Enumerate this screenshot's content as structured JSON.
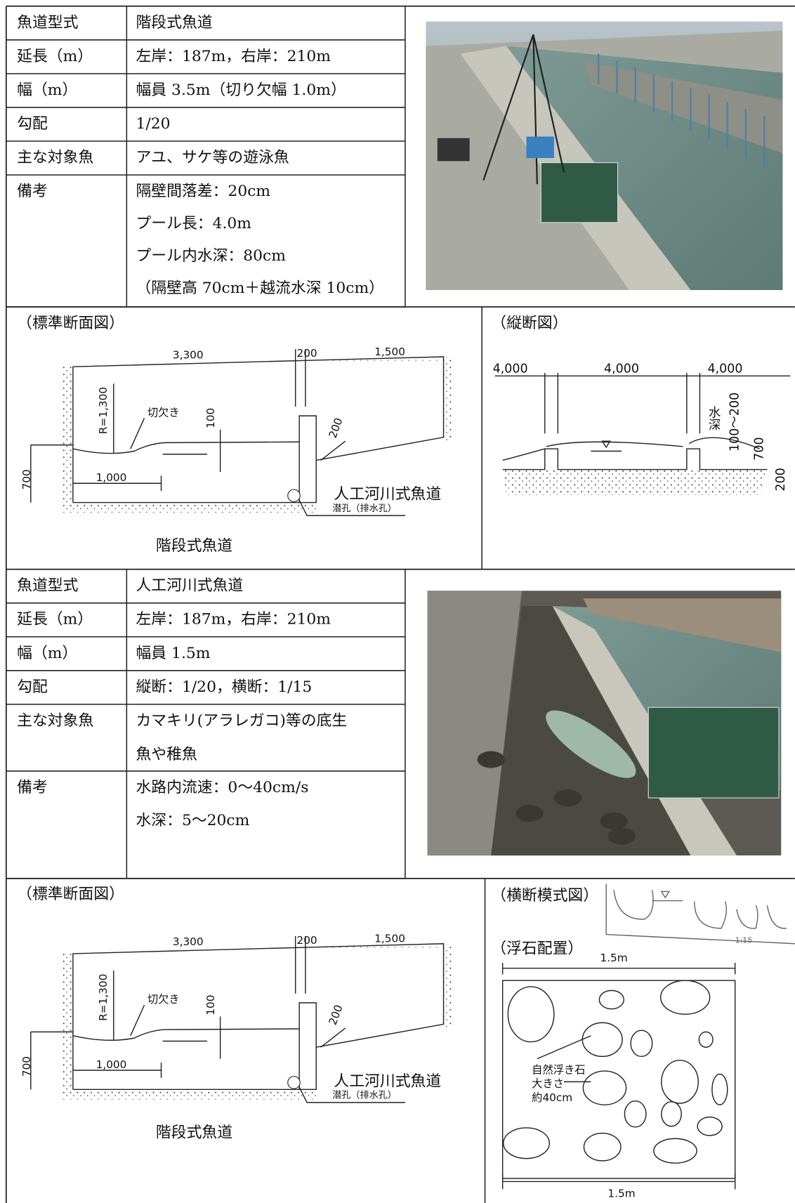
{
  "table1": {
    "rows": [
      {
        "label": "魚道型式",
        "lines": [
          "階段式魚道"
        ]
      },
      {
        "label": "延長（m）",
        "lines": [
          "左岸：187m，右岸：210m"
        ]
      },
      {
        "label": "幅（m）",
        "lines": [
          "幅員 3.5m（切り欠幅 1.0m）"
        ]
      },
      {
        "label": "勾配",
        "lines": [
          "1/20"
        ]
      },
      {
        "label": "主な対象魚",
        "lines": [
          "アユ、サケ等の遊泳魚"
        ]
      },
      {
        "label": "備考",
        "lines": [
          "隔壁間落差：20cm",
          "プール長：4.0m",
          "プール内水深：80cm",
          "（隔壁高 70cm＋越流水深 10cm）"
        ]
      }
    ]
  },
  "diagram1": {
    "caption": "（標準断面図）",
    "labels": [
      "3,300",
      "200",
      "1,500",
      "R=1,300",
      "切欠き",
      "100",
      "200",
      "700",
      "1,000",
      "人工河川式魚道",
      "潜孔（排水孔）",
      "階段式魚道"
    ]
  },
  "longitudinal": {
    "caption": "（縦断図）",
    "labels": [
      "4,000",
      "4,000",
      "4,000",
      "水深",
      "100～200",
      "700",
      "200"
    ]
  },
  "table2": {
    "rows": [
      {
        "label": "魚道型式",
        "lines": [
          "人工河川式魚道"
        ]
      },
      {
        "label": "延長（m）",
        "lines": [
          "左岸：187m，右岸：210m"
        ]
      },
      {
        "label": "幅（m）",
        "lines": [
          "幅員 1.5m"
        ]
      },
      {
        "label": "勾配",
        "lines": [
          "縦断：1/20，横断：1/15"
        ]
      },
      {
        "label": "主な対象魚",
        "lines": [
          "カマキリ(アラレガコ)等の底生",
          "魚や稚魚"
        ]
      },
      {
        "label": "備考",
        "lines": [
          "水路内流速：0～40cm/s",
          "水深：5～20cm"
        ]
      }
    ]
  },
  "diagram2": {
    "caption": "（標準断面図）",
    "labels": [
      "3,300",
      "200",
      "1,500",
      "R=1,300",
      "切欠き",
      "100",
      "200",
      "700",
      "1,000",
      "人工河川式魚道",
      "潜孔（排水孔）",
      "階段式魚道"
    ]
  },
  "crossSection": {
    "caption": "（横断模式図）",
    "slope": "1:15"
  },
  "stones": {
    "caption": "（浮石配置）",
    "widthTop": "1.5m",
    "note": [
      "自然浮き石",
      "大きさ",
      "約40cm"
    ],
    "widthBottom": "1.5m"
  }
}
